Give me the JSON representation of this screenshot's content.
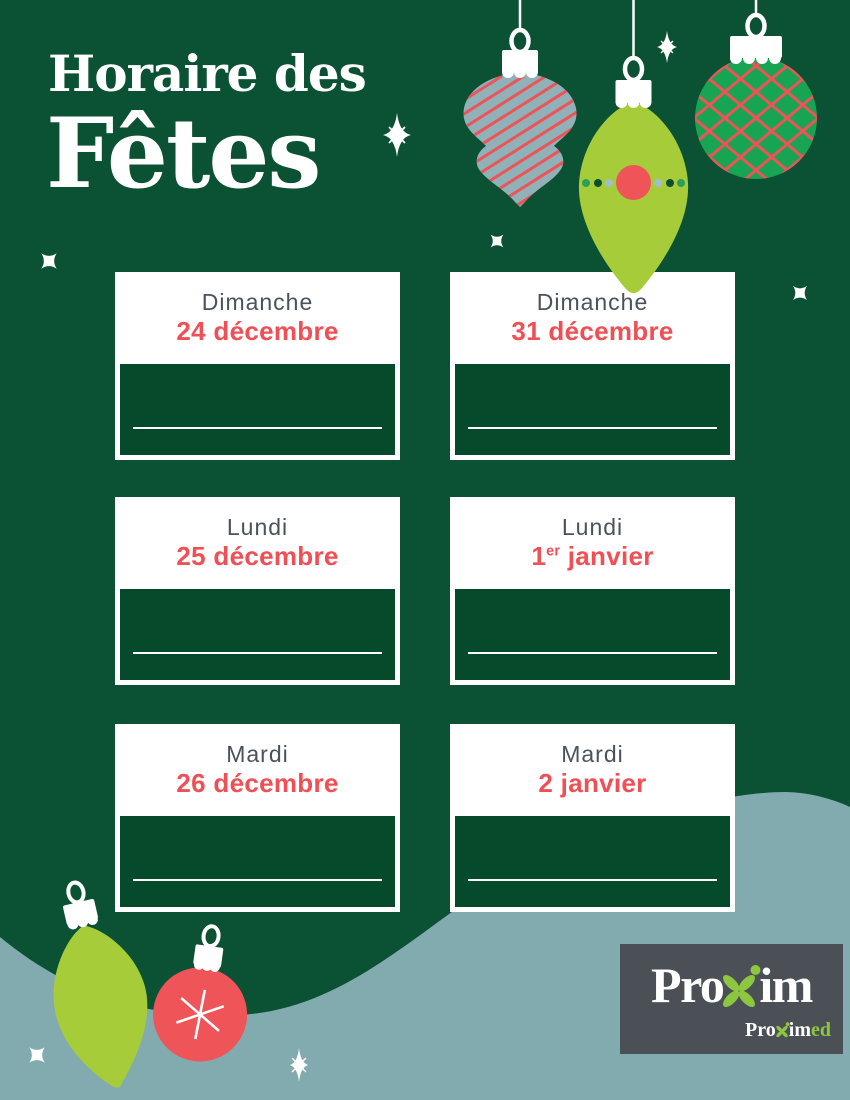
{
  "poster": {
    "title_line1": "Horaire des",
    "title_line2": "Fêtes"
  },
  "cards": [
    {
      "day": "Dimanche",
      "date": "24 décembre"
    },
    {
      "day": "Dimanche",
      "date": "31 décembre"
    },
    {
      "day": "Lundi",
      "date": "25 décembre"
    },
    {
      "day": "Lundi",
      "date": "1",
      "sup": "er",
      "tail": " janvier"
    },
    {
      "day": "Mardi",
      "date": "26 décembre"
    },
    {
      "day": "Mardi",
      "date": "2 janvier"
    }
  ],
  "logo": {
    "main_pre": "Pro",
    "main_post": "im",
    "sub_pre": "Pro",
    "sub_mid": "im",
    "sub_suffix": "ed"
  },
  "icons": {
    "striped-ornament-icon": "teal bauble with red diagonal stripes",
    "drop-ornament-icon": "lime drop bauble with dotted band and red circle",
    "plaid-ball-ornament-icon": "green ball bauble with red lattice",
    "leaf-ornament-icon": "tilted lime teardrop bauble",
    "snowflake-ball-ornament-icon": "red bauble with white snowflake",
    "sparkle-icon": "white four-point twinkle",
    "starburst-icon": "white eight-ray sparkle"
  },
  "colors": {
    "background": "#0B5133",
    "card_panel": "#054A2B",
    "accent_red": "#F04F55",
    "day_gray": "#4A525C",
    "lime": "#A6CC39",
    "teal": "#8FB1B7",
    "ball_green": "#17A553",
    "stripe_red": "#EE5358",
    "ornament_red": "#EF5459",
    "dot_dark_green": "#0B4F31",
    "dot_pale_blue": "#9FC0C6",
    "dot_green": "#2AA05C",
    "wave": "#82ABB0",
    "logo_bg": "#4A5055",
    "logo_green": "#8DC63F"
  }
}
